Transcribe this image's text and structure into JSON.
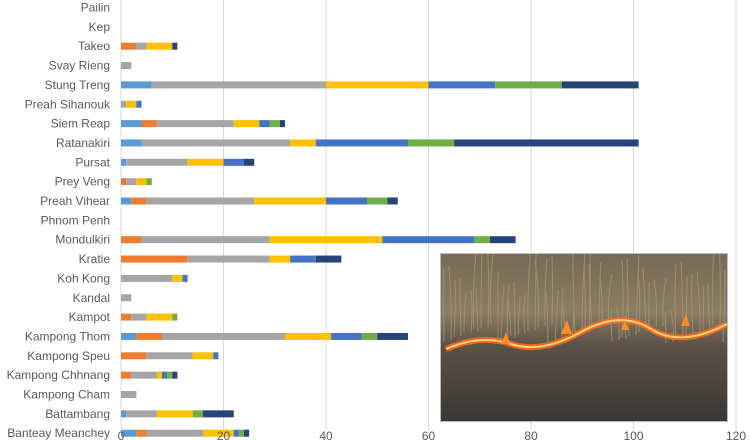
{
  "chart_data": {
    "type": "bar",
    "stacked": true,
    "orientation": "horizontal",
    "categories": [
      "Pailin",
      "Kep",
      "Takeo",
      "Svay Rieng",
      "Stung Treng",
      "Preah Sihanouk",
      "Siem Reap",
      "Ratanakiri",
      "Pursat",
      "Prey Veng",
      "Preah Vihear",
      "Phnom Penh",
      "Mondulkiri",
      "Kratie",
      "Koh Kong",
      "Kandal",
      "Kampot",
      "Kampong Thom",
      "Kampong Speu",
      "Kampong Chhnang",
      "Kampong Cham",
      "Battambang",
      "Banteay Meanchey"
    ],
    "series": [
      {
        "color": "#5B9BD5",
        "values": [
          0,
          0,
          0,
          0,
          6,
          0,
          4,
          4,
          1,
          0,
          2,
          0,
          0,
          0,
          0,
          0,
          0,
          3,
          0,
          0,
          0,
          1,
          3
        ]
      },
      {
        "color": "#ED7D31",
        "values": [
          0,
          0,
          3,
          0,
          0,
          0,
          3,
          0,
          0,
          1,
          3,
          0,
          4,
          13,
          0,
          0,
          2,
          5,
          5,
          2,
          0,
          0,
          2
        ]
      },
      {
        "color": "#A5A5A5",
        "values": [
          0,
          0,
          2,
          2,
          34,
          1,
          15,
          29,
          12,
          2,
          21,
          0,
          25,
          16,
          10,
          2,
          3,
          24,
          9,
          5,
          3,
          6,
          11
        ]
      },
      {
        "color": "#FFC000",
        "values": [
          0,
          0,
          5,
          0,
          20,
          2,
          5,
          5,
          7,
          2,
          14,
          0,
          22,
          4,
          2,
          0,
          5,
          9,
          4,
          1,
          0,
          7,
          6
        ]
      },
      {
        "color": "#4472C4",
        "values": [
          0,
          0,
          0,
          0,
          13,
          1,
          2,
          18,
          4,
          0,
          8,
          0,
          18,
          5,
          1,
          0,
          0,
          6,
          1,
          1,
          0,
          0,
          1
        ]
      },
      {
        "color": "#70AD47",
        "values": [
          0,
          0,
          0,
          0,
          13,
          0,
          2,
          9,
          0,
          1,
          4,
          0,
          3,
          0,
          0,
          0,
          1,
          3,
          0,
          1,
          0,
          2,
          1
        ]
      },
      {
        "color": "#264478",
        "values": [
          0,
          0,
          1,
          0,
          15,
          0,
          1,
          36,
          2,
          0,
          2,
          0,
          5,
          5,
          0,
          0,
          0,
          6,
          0,
          1,
          0,
          6,
          1
        ]
      }
    ],
    "xlim": [
      0,
      120
    ],
    "x_ticks": [
      "0",
      "20",
      "40",
      "60",
      "80",
      "100",
      "120"
    ],
    "grid": true,
    "legend": "none",
    "colors": {
      "gridline": "#d9d9d9",
      "axis_text": "#595959"
    }
  },
  "photo": {
    "description_icon": "grass-fire-photo"
  }
}
